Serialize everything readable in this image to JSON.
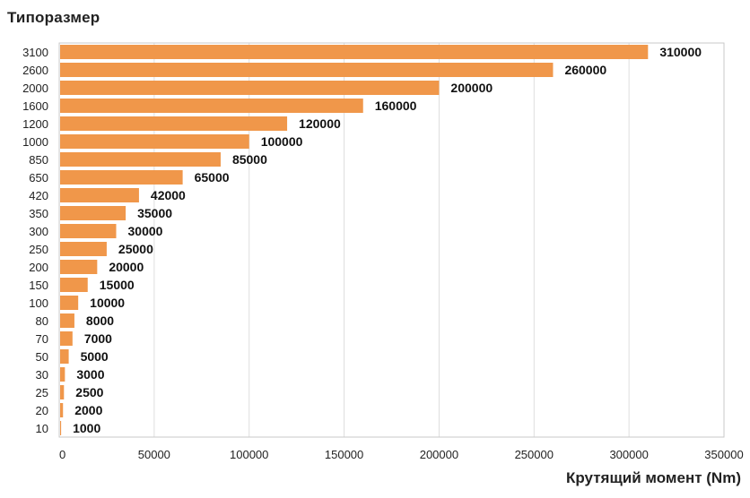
{
  "chart_data": {
    "type": "bar",
    "orientation": "horizontal",
    "ylabel": "Типоразмер",
    "xlabel": "Крутящий момент (Nm)",
    "categories": [
      "3100",
      "2600",
      "2000",
      "1600",
      "1200",
      "1000",
      "850",
      "650",
      "420",
      "350",
      "300",
      "250",
      "200",
      "150",
      "100",
      "80",
      "70",
      "50",
      "30",
      "25",
      "20",
      "10"
    ],
    "values": [
      310000,
      260000,
      200000,
      160000,
      120000,
      100000,
      85000,
      65000,
      42000,
      35000,
      30000,
      25000,
      20000,
      15000,
      10000,
      8000,
      7000,
      5000,
      3000,
      2500,
      2000,
      1000
    ],
    "value_labels": [
      "310000",
      "260000",
      "200000",
      "160000",
      "120000",
      "100000",
      "85000",
      "65000",
      "42000",
      "35000",
      "30000",
      "25000",
      "20000",
      "15000",
      "10000",
      "8000",
      "7000",
      "5000",
      "3000",
      "2500",
      "2000",
      "1000"
    ],
    "xlim": [
      0,
      350000
    ],
    "xticks": [
      0,
      50000,
      100000,
      150000,
      200000,
      250000,
      300000,
      350000
    ],
    "xtick_labels": [
      "0",
      "50000",
      "100000",
      "150000",
      "200000",
      "250000",
      "300000",
      "350000"
    ],
    "bar_color": "#f0974a",
    "grid": "vertical",
    "legend": "none"
  }
}
